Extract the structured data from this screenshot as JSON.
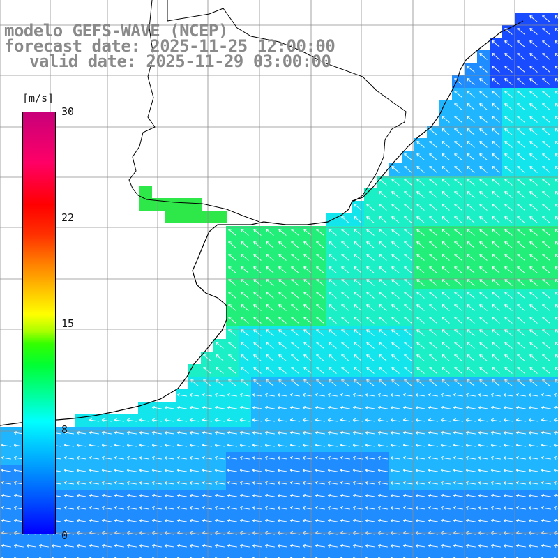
{
  "title": {
    "line1": "modelo GEFS-WAVE (NCEP)",
    "line2": "forecast date: 2025-11-25 12:00:00",
    "line3": "valid date: 2025-11-29 03:00:00"
  },
  "colorbar": {
    "unit": "[m/s]",
    "ticks": [
      {
        "label": "30",
        "value": 30
      },
      {
        "label": "22",
        "value": 22
      },
      {
        "label": "15",
        "value": 15
      },
      {
        "label": "8",
        "value": 8
      },
      {
        "label": "0",
        "value": 0
      }
    ],
    "colors": [
      "#0000ff",
      "#009cff",
      "#00ffff",
      "#00ff33",
      "#ffff00",
      "#ff8000",
      "#ff0000",
      "#c8007a"
    ]
  },
  "map": {
    "ocean_colors": {
      "deep_blue": "#1a4cff",
      "blue": "#1f8cff",
      "sky": "#1fb6ff",
      "cyan": "#12e6ec",
      "aqua": "#1aefc6",
      "green": "#22ee7a",
      "lime": "#2ee84a"
    },
    "grid_color": "#8c8c8c",
    "coast_color": "#000000",
    "arrow_color": "#ffffff"
  }
}
